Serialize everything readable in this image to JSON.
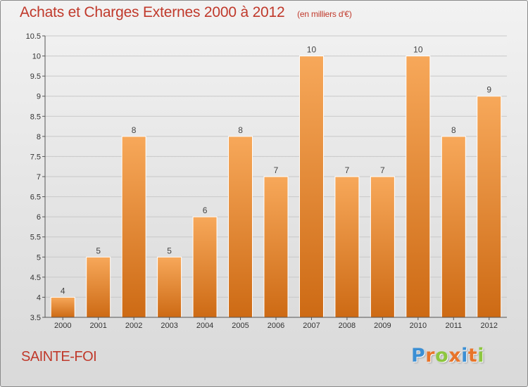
{
  "header": {
    "title": "Achats et Charges Externes 2000 à 2012",
    "subtitle": "(en milliers d'€)"
  },
  "footer": {
    "location": "SAINTE-FOI",
    "logo_letters": [
      "P",
      "r",
      "o",
      "x",
      "i",
      "t",
      "i"
    ]
  },
  "colors": {
    "title": "#c0392b",
    "bar_top": "#f7a85a",
    "bar_bottom": "#cd6a14",
    "logo": [
      "#3b8fd4",
      "#e8742a",
      "#8dc63f",
      "#e8742a",
      "#3b8fd4",
      "#e8742a",
      "#8dc63f"
    ]
  },
  "chart_data": {
    "type": "bar",
    "title": "Achats et Charges Externes 2000 à 2012",
    "subtitle": "(en milliers d'€)",
    "categories": [
      "2000",
      "2001",
      "2002",
      "2003",
      "2004",
      "2005",
      "2006",
      "2007",
      "2008",
      "2009",
      "2010",
      "2011",
      "2012"
    ],
    "values": [
      4,
      5,
      8,
      5,
      6,
      8,
      7,
      10,
      7,
      7,
      10,
      8,
      9
    ],
    "ylim": [
      3.5,
      10.5
    ],
    "yticks": [
      "3.5",
      "4",
      "4.5",
      "5",
      "5.5",
      "6",
      "6.5",
      "7",
      "7.5",
      "8",
      "8.5",
      "9",
      "9.5",
      "10",
      "10.5"
    ],
    "grid": true,
    "legend": "none"
  }
}
